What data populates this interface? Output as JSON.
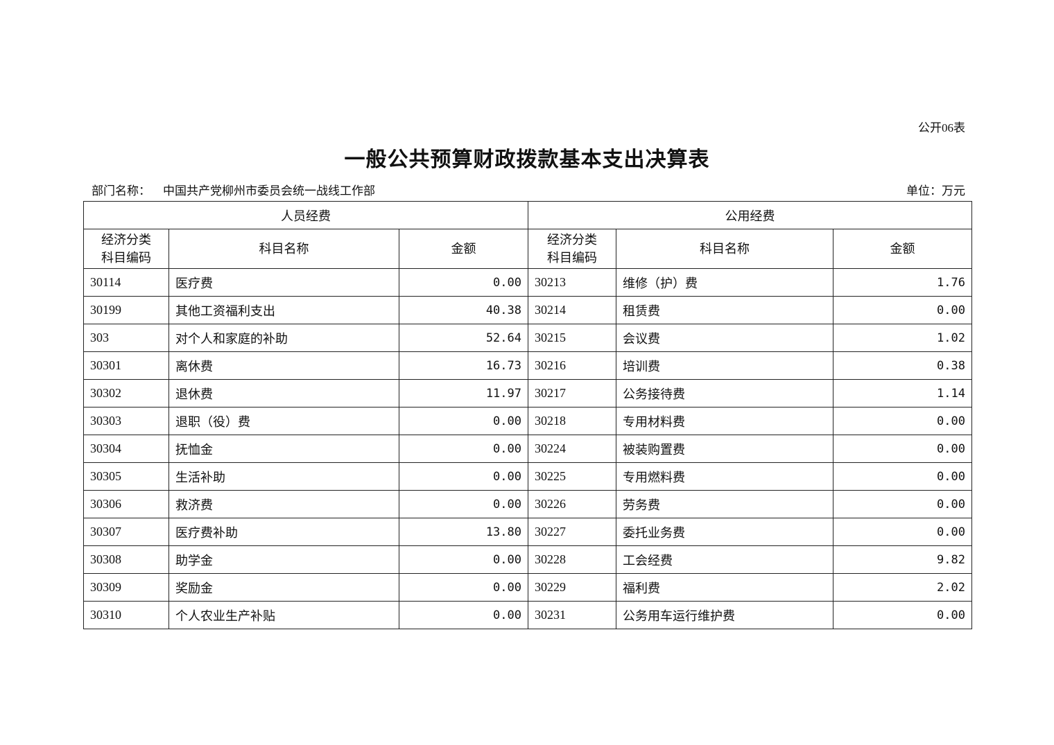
{
  "form_number": "公开06表",
  "title": "一般公共预算财政拨款基本支出决算表",
  "department_label": "部门名称：",
  "department_name": "中国共产党柳州市委员会统一战线工作部",
  "unit": "单位：万元",
  "table": {
    "group_headers": [
      "人员经费",
      "公用经费"
    ],
    "column_headers": {
      "code": "经济分类科目编码",
      "code_line1": "经济分类",
      "code_line2": "科目编码",
      "name": "科目名称",
      "amount": "金额"
    },
    "rows": [
      {
        "p_code": "30114",
        "p_name": "医疗费",
        "p_amount": "0.00",
        "g_code": "30213",
        "g_name": "维修（护）费",
        "g_amount": "1.76"
      },
      {
        "p_code": "30199",
        "p_name": "其他工资福利支出",
        "p_amount": "40.38",
        "g_code": "30214",
        "g_name": "租赁费",
        "g_amount": "0.00"
      },
      {
        "p_code": "303",
        "p_name": "对个人和家庭的补助",
        "p_amount": "52.64",
        "g_code": "30215",
        "g_name": "会议费",
        "g_amount": "1.02"
      },
      {
        "p_code": "30301",
        "p_name": "离休费",
        "p_amount": "16.73",
        "g_code": "30216",
        "g_name": "培训费",
        "g_amount": "0.38"
      },
      {
        "p_code": "30302",
        "p_name": "退休费",
        "p_amount": "11.97",
        "g_code": "30217",
        "g_name": "公务接待费",
        "g_amount": "1.14"
      },
      {
        "p_code": "30303",
        "p_name": "退职（役）费",
        "p_amount": "0.00",
        "g_code": "30218",
        "g_name": "专用材料费",
        "g_amount": "0.00"
      },
      {
        "p_code": "30304",
        "p_name": "抚恤金",
        "p_amount": "0.00",
        "g_code": "30224",
        "g_name": "被装购置费",
        "g_amount": "0.00"
      },
      {
        "p_code": "30305",
        "p_name": "生活补助",
        "p_amount": "0.00",
        "g_code": "30225",
        "g_name": "专用燃料费",
        "g_amount": "0.00"
      },
      {
        "p_code": "30306",
        "p_name": "救济费",
        "p_amount": "0.00",
        "g_code": "30226",
        "g_name": "劳务费",
        "g_amount": "0.00"
      },
      {
        "p_code": "30307",
        "p_name": "医疗费补助",
        "p_amount": "13.80",
        "g_code": "30227",
        "g_name": "委托业务费",
        "g_amount": "0.00"
      },
      {
        "p_code": "30308",
        "p_name": "助学金",
        "p_amount": "0.00",
        "g_code": "30228",
        "g_name": "工会经费",
        "g_amount": "9.82"
      },
      {
        "p_code": "30309",
        "p_name": "奖励金",
        "p_amount": "0.00",
        "g_code": "30229",
        "g_name": "福利费",
        "g_amount": "2.02"
      },
      {
        "p_code": "30310",
        "p_name": "个人农业生产补贴",
        "p_amount": "0.00",
        "g_code": "30231",
        "g_name": "公务用车运行维护费",
        "g_amount": "0.00"
      }
    ]
  }
}
